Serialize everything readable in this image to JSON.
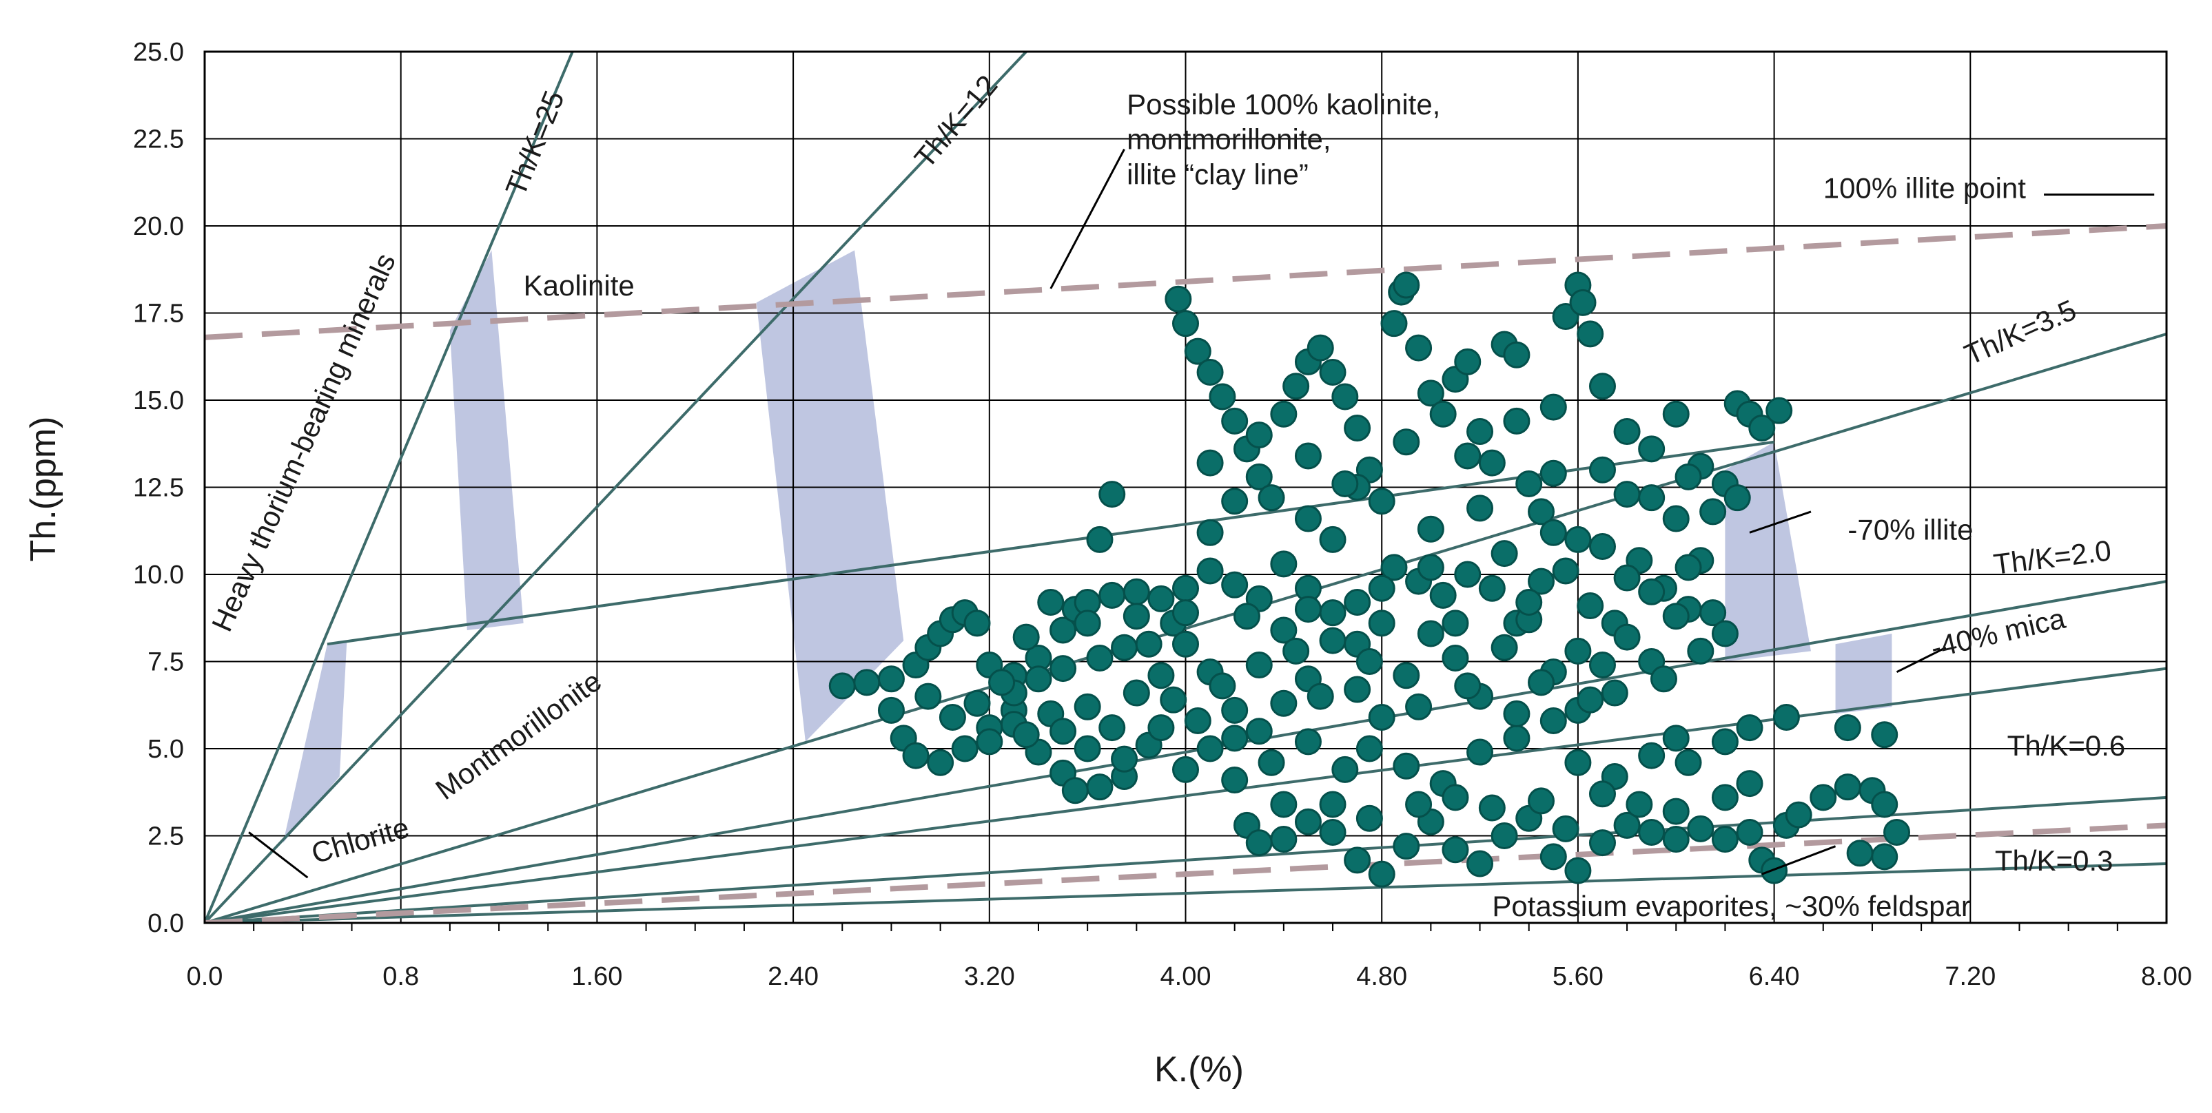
{
  "colors": {
    "points": "#0a6e68",
    "points_stroke": "#05504b",
    "ratio_lines": "#3d6b6a",
    "dashed_lines": "#b39a9e",
    "zones": "#b4bcdc",
    "grid": "#000000"
  },
  "chart_data": {
    "type": "scatter",
    "xlabel": "K.(%)",
    "ylabel": "Th.(ppm)",
    "xlim": [
      0,
      8
    ],
    "ylim": [
      0,
      25
    ],
    "grid": true,
    "x_ticks": [
      {
        "value": 0,
        "label": "0.0"
      },
      {
        "value": 0.8,
        "label": "0.8"
      },
      {
        "value": 1.6,
        "label": "1.60"
      },
      {
        "value": 2.4,
        "label": "2.40"
      },
      {
        "value": 3.2,
        "label": "3.20"
      },
      {
        "value": 4.0,
        "label": "4.00"
      },
      {
        "value": 4.8,
        "label": "4.80"
      },
      {
        "value": 5.6,
        "label": "5.60"
      },
      {
        "value": 6.4,
        "label": "6.40"
      },
      {
        "value": 7.2,
        "label": "7.20"
      },
      {
        "value": 8.0,
        "label": "8.00"
      }
    ],
    "y_ticks": [
      {
        "value": 0,
        "label": "0.0"
      },
      {
        "value": 2.5,
        "label": "2.5"
      },
      {
        "value": 5,
        "label": "5.0"
      },
      {
        "value": 7.5,
        "label": "7.5"
      },
      {
        "value": 10,
        "label": "10.0"
      },
      {
        "value": 12.5,
        "label": "12.5"
      },
      {
        "value": 15,
        "label": "15.0"
      },
      {
        "value": 17.5,
        "label": "17.5"
      },
      {
        "value": 20,
        "label": "20.0"
      },
      {
        "value": 22.5,
        "label": "22.5"
      },
      {
        "value": 25,
        "label": "25.0"
      }
    ],
    "ratio_lines": [
      {
        "label": "Th/K=25",
        "points": [
          [
            0,
            0
          ],
          [
            1.5,
            25
          ]
        ]
      },
      {
        "label": "Th/K=12",
        "points": [
          [
            0,
            0
          ],
          [
            3.35,
            25
          ]
        ]
      },
      {
        "label": "Th/K=3.5",
        "points": [
          [
            0,
            0
          ],
          [
            8,
            16.9
          ]
        ]
      },
      {
        "label": "Th/K=2.0",
        "points": [
          [
            0,
            0
          ],
          [
            8,
            9.8
          ]
        ]
      },
      {
        "label": "Th/K=0.6",
        "points": [
          [
            0,
            0
          ],
          [
            8,
            7.3
          ]
        ]
      },
      {
        "label": "",
        "points": [
          [
            0,
            0
          ],
          [
            8,
            3.6
          ]
        ]
      },
      {
        "label": "Th/K=0.3",
        "points": [
          [
            0,
            0
          ],
          [
            8,
            1.7
          ]
        ]
      },
      {
        "label": "",
        "points": [
          [
            0.5,
            8.0
          ],
          [
            6.4,
            13.8
          ]
        ]
      }
    ],
    "dashed_lines": [
      {
        "label": "Possible 100% kaolinite, montmorillonite, illite “clay line”",
        "points": [
          [
            0,
            16.8
          ],
          [
            8,
            20.0
          ]
        ]
      },
      {
        "label": "Potassium evaporites, ~30% feldspar",
        "points": [
          [
            0,
            0
          ],
          [
            8,
            2.8
          ]
        ]
      }
    ],
    "zones": [
      {
        "label": "Chlorite",
        "polygon": [
          [
            0.32,
            2.3
          ],
          [
            0.5,
            8.0
          ],
          [
            0.58,
            8.1
          ],
          [
            0.55,
            4.2
          ]
        ]
      },
      {
        "label": "Kaolinite",
        "polygon": [
          [
            1.0,
            17.0
          ],
          [
            1.17,
            19.3
          ],
          [
            1.3,
            8.6
          ],
          [
            1.07,
            8.4
          ]
        ]
      },
      {
        "label": "Montmorillonite",
        "polygon": [
          [
            2.25,
            17.8
          ],
          [
            2.65,
            19.3
          ],
          [
            2.85,
            8.1
          ],
          [
            2.45,
            5.2
          ]
        ]
      },
      {
        "label": "-70% illite",
        "polygon": [
          [
            6.2,
            13.0
          ],
          [
            6.4,
            13.8
          ],
          [
            6.55,
            7.8
          ],
          [
            6.2,
            7.5
          ]
        ]
      },
      {
        "label": "-40% mica",
        "polygon": [
          [
            6.65,
            6.0
          ],
          [
            6.65,
            8.0
          ],
          [
            6.88,
            8.3
          ],
          [
            6.88,
            6.2
          ]
        ]
      }
    ],
    "annotations": [
      {
        "text": "Th/K=25",
        "x": 1.3,
        "y": 20.8,
        "rotate": -68
      },
      {
        "text": "Th/K=12",
        "x": 2.95,
        "y": 21.6,
        "rotate": -50
      },
      {
        "text": "Possible 100% kaolinite,",
        "x": 3.76,
        "y": 23.2,
        "rotate": 0
      },
      {
        "text": "montmorillonite,",
        "x": 3.76,
        "y": 22.2,
        "rotate": 0
      },
      {
        "text": "illite “clay line”",
        "x": 3.76,
        "y": 21.2,
        "rotate": 0
      },
      {
        "text": "100% illite point",
        "x": 6.6,
        "y": 20.8,
        "rotate": 0
      },
      {
        "text": "Kaolinite",
        "x": 1.3,
        "y": 18.0,
        "rotate": 0
      },
      {
        "text": "Heavy thorium-bearing minerals",
        "x": 0.1,
        "y": 8.3,
        "rotate": -66
      },
      {
        "text": "Montmorillonite",
        "x": 0.98,
        "y": 3.5,
        "rotate": -36
      },
      {
        "text": "Chlorite",
        "x": 0.45,
        "y": 1.7,
        "rotate": -16
      },
      {
        "text": "Th/K=3.5",
        "x": 7.2,
        "y": 16.0,
        "rotate": -24
      },
      {
        "text": "-70% illite",
        "x": 6.7,
        "y": 11.0,
        "rotate": 0
      },
      {
        "text": "Th/K=2.0",
        "x": 7.3,
        "y": 10.0,
        "rotate": -7
      },
      {
        "text": "-40% mica",
        "x": 7.05,
        "y": 7.6,
        "rotate": -13
      },
      {
        "text": "Th/K=0.6",
        "x": 7.35,
        "y": 4.8,
        "rotate": 0
      },
      {
        "text": "Th/K=0.3",
        "x": 7.3,
        "y": 1.5,
        "rotate": 0
      },
      {
        "text": "Potassium evaporites, ~30% feldspar",
        "x": 5.25,
        "y": 0.2,
        "rotate": 0
      }
    ],
    "pointer_lines": [
      {
        "from": [
          3.45,
          18.2
        ],
        "to": [
          3.75,
          22.2
        ]
      },
      {
        "from": [
          7.5,
          20.9
        ],
        "to": [
          7.95,
          20.9
        ]
      },
      {
        "from": [
          6.3,
          11.2
        ],
        "to": [
          6.55,
          11.8
        ]
      },
      {
        "from": [
          6.9,
          7.2
        ],
        "to": [
          7.1,
          7.9
        ]
      },
      {
        "from": [
          0.18,
          2.6
        ],
        "to": [
          0.42,
          1.3
        ]
      },
      {
        "from": [
          6.35,
          1.4
        ],
        "to": [
          6.65,
          2.2
        ]
      }
    ],
    "points": [
      [
        2.6,
        6.8
      ],
      [
        2.7,
        6.9
      ],
      [
        2.8,
        7.0
      ],
      [
        2.9,
        7.4
      ],
      [
        2.95,
        7.9
      ],
      [
        3.0,
        8.3
      ],
      [
        3.05,
        8.7
      ],
      [
        3.1,
        8.9
      ],
      [
        3.15,
        8.6
      ],
      [
        3.2,
        7.4
      ],
      [
        3.3,
        7.1
      ],
      [
        3.4,
        7.6
      ],
      [
        3.5,
        8.4
      ],
      [
        3.55,
        9.0
      ],
      [
        3.6,
        9.2
      ],
      [
        3.7,
        9.4
      ],
      [
        3.8,
        9.5
      ],
      [
        3.9,
        9.3
      ],
      [
        3.95,
        8.6
      ],
      [
        4.0,
        9.6
      ],
      [
        4.1,
        10.1
      ],
      [
        4.2,
        9.7
      ],
      [
        4.3,
        9.3
      ],
      [
        4.4,
        10.3
      ],
      [
        4.5,
        9.6
      ],
      [
        4.6,
        8.9
      ],
      [
        4.7,
        9.2
      ],
      [
        4.8,
        8.6
      ],
      [
        4.85,
        10.2
      ],
      [
        4.95,
        9.8
      ],
      [
        5.05,
        9.4
      ],
      [
        5.15,
        10.0
      ],
      [
        5.25,
        9.6
      ],
      [
        5.35,
        8.6
      ],
      [
        5.45,
        9.8
      ],
      [
        5.55,
        10.1
      ],
      [
        5.65,
        9.1
      ],
      [
        5.75,
        8.6
      ],
      [
        5.85,
        10.4
      ],
      [
        5.95,
        9.6
      ],
      [
        6.05,
        9.0
      ],
      [
        6.15,
        8.9
      ],
      [
        2.8,
        6.1
      ],
      [
        2.85,
        5.3
      ],
      [
        2.9,
        4.8
      ],
      [
        3.0,
        4.6
      ],
      [
        3.1,
        5.0
      ],
      [
        3.2,
        5.6
      ],
      [
        3.3,
        6.1
      ],
      [
        3.4,
        4.9
      ],
      [
        3.5,
        4.3
      ],
      [
        3.55,
        3.8
      ],
      [
        3.65,
        3.9
      ],
      [
        3.75,
        4.2
      ],
      [
        3.85,
        5.1
      ],
      [
        3.95,
        6.4
      ],
      [
        4.0,
        4.4
      ],
      [
        4.1,
        5.0
      ],
      [
        4.2,
        4.1
      ],
      [
        4.25,
        2.8
      ],
      [
        4.3,
        2.3
      ],
      [
        4.4,
        2.4
      ],
      [
        4.5,
        2.9
      ],
      [
        4.6,
        3.4
      ],
      [
        4.7,
        1.8
      ],
      [
        4.8,
        1.4
      ],
      [
        4.9,
        2.2
      ],
      [
        5.0,
        2.9
      ],
      [
        5.1,
        2.1
      ],
      [
        5.2,
        1.7
      ],
      [
        5.3,
        2.5
      ],
      [
        5.4,
        3.0
      ],
      [
        5.5,
        1.9
      ],
      [
        5.6,
        1.5
      ],
      [
        5.7,
        2.3
      ],
      [
        5.8,
        2.8
      ],
      [
        5.9,
        2.6
      ],
      [
        6.0,
        3.2
      ],
      [
        6.1,
        2.7
      ],
      [
        6.2,
        2.4
      ],
      [
        6.3,
        2.6
      ],
      [
        6.35,
        1.8
      ],
      [
        6.4,
        1.5
      ],
      [
        6.45,
        2.8
      ],
      [
        6.5,
        3.1
      ],
      [
        6.6,
        3.6
      ],
      [
        6.7,
        3.9
      ],
      [
        6.8,
        3.8
      ],
      [
        6.85,
        3.4
      ],
      [
        6.9,
        2.6
      ],
      [
        6.85,
        1.9
      ],
      [
        6.75,
        2.0
      ],
      [
        5.6,
        4.6
      ],
      [
        5.75,
        4.2
      ],
      [
        5.9,
        4.8
      ],
      [
        6.05,
        4.6
      ],
      [
        6.2,
        5.2
      ],
      [
        6.3,
        5.6
      ],
      [
        6.45,
        5.9
      ],
      [
        6.7,
        5.6
      ],
      [
        6.85,
        5.4
      ],
      [
        6.0,
        5.3
      ],
      [
        3.97,
        17.9
      ],
      [
        4.0,
        17.2
      ],
      [
        4.05,
        16.4
      ],
      [
        4.1,
        15.8
      ],
      [
        4.15,
        15.1
      ],
      [
        4.2,
        14.4
      ],
      [
        4.25,
        13.6
      ],
      [
        4.3,
        12.8
      ],
      [
        4.35,
        12.2
      ],
      [
        4.4,
        14.6
      ],
      [
        4.45,
        15.4
      ],
      [
        4.5,
        16.1
      ],
      [
        4.55,
        16.5
      ],
      [
        4.6,
        15.8
      ],
      [
        4.65,
        15.1
      ],
      [
        4.7,
        14.2
      ],
      [
        4.75,
        13.0
      ],
      [
        4.8,
        12.1
      ],
      [
        4.85,
        17.2
      ],
      [
        4.88,
        18.1
      ],
      [
        4.9,
        18.3
      ],
      [
        4.95,
        16.5
      ],
      [
        5.0,
        15.2
      ],
      [
        5.05,
        14.6
      ],
      [
        5.1,
        15.6
      ],
      [
        5.15,
        16.1
      ],
      [
        5.2,
        14.1
      ],
      [
        5.25,
        13.2
      ],
      [
        5.3,
        16.6
      ],
      [
        5.35,
        16.3
      ],
      [
        5.4,
        12.6
      ],
      [
        5.45,
        11.8
      ],
      [
        5.5,
        12.9
      ],
      [
        5.55,
        17.4
      ],
      [
        5.6,
        18.3
      ],
      [
        5.62,
        17.8
      ],
      [
        5.65,
        16.9
      ],
      [
        5.7,
        15.4
      ],
      [
        5.8,
        14.1
      ],
      [
        5.9,
        13.6
      ],
      [
        6.0,
        14.6
      ],
      [
        6.1,
        13.1
      ],
      [
        6.2,
        12.6
      ],
      [
        6.25,
        14.9
      ],
      [
        6.3,
        14.6
      ],
      [
        6.35,
        14.2
      ],
      [
        6.42,
        14.7
      ],
      [
        3.7,
        12.3
      ],
      [
        3.65,
        11.0
      ],
      [
        4.1,
        11.2
      ],
      [
        4.2,
        12.1
      ],
      [
        4.5,
        11.6
      ],
      [
        4.6,
        11.0
      ],
      [
        4.7,
        12.5
      ],
      [
        5.0,
        11.3
      ],
      [
        5.2,
        11.9
      ],
      [
        5.6,
        11.0
      ],
      [
        5.8,
        12.3
      ],
      [
        6.0,
        11.6
      ],
      [
        6.1,
        10.4
      ],
      [
        5.9,
        9.5
      ],
      [
        6.05,
        10.2
      ],
      [
        3.3,
        6.6
      ],
      [
        3.4,
        7.0
      ],
      [
        3.5,
        7.3
      ],
      [
        3.6,
        6.2
      ],
      [
        3.7,
        5.6
      ],
      [
        3.8,
        6.6
      ],
      [
        3.9,
        7.1
      ],
      [
        4.0,
        8.0
      ],
      [
        4.1,
        7.2
      ],
      [
        4.2,
        6.1
      ],
      [
        4.3,
        5.5
      ],
      [
        4.4,
        6.3
      ],
      [
        4.5,
        7.0
      ],
      [
        4.6,
        8.1
      ],
      [
        4.7,
        6.7
      ],
      [
        4.8,
        5.9
      ],
      [
        4.9,
        7.1
      ],
      [
        5.0,
        8.3
      ],
      [
        5.1,
        7.6
      ],
      [
        5.2,
        6.5
      ],
      [
        5.3,
        7.9
      ],
      [
        5.4,
        8.7
      ],
      [
        5.5,
        7.2
      ],
      [
        5.6,
        6.1
      ],
      [
        5.7,
        7.4
      ],
      [
        5.8,
        8.2
      ],
      [
        5.9,
        7.5
      ],
      [
        6.0,
        8.8
      ],
      [
        3.2,
        5.2
      ],
      [
        3.3,
        5.7
      ],
      [
        3.45,
        6.0
      ],
      [
        3.6,
        5.0
      ],
      [
        3.75,
        4.7
      ],
      [
        3.9,
        5.6
      ],
      [
        4.05,
        5.8
      ],
      [
        4.2,
        5.3
      ],
      [
        4.35,
        4.6
      ],
      [
        4.5,
        5.2
      ],
      [
        4.65,
        4.4
      ],
      [
        4.75,
        5.0
      ],
      [
        4.9,
        4.5
      ],
      [
        5.05,
        4.0
      ],
      [
        5.2,
        4.9
      ],
      [
        5.35,
        5.3
      ],
      [
        5.5,
        5.8
      ],
      [
        5.65,
        6.4
      ],
      [
        4.4,
        3.4
      ],
      [
        4.6,
        2.6
      ],
      [
        4.75,
        3.0
      ],
      [
        4.95,
        3.4
      ],
      [
        5.1,
        3.6
      ],
      [
        5.25,
        3.3
      ],
      [
        5.45,
        3.5
      ],
      [
        5.55,
        2.7
      ],
      [
        5.7,
        3.7
      ],
      [
        5.85,
        3.4
      ],
      [
        6.0,
        2.4
      ],
      [
        6.2,
        3.6
      ],
      [
        6.3,
        4.0
      ],
      [
        4.5,
        9.0
      ],
      [
        4.8,
        9.6
      ],
      [
        5.0,
        10.2
      ],
      [
        5.3,
        10.6
      ],
      [
        5.5,
        11.2
      ],
      [
        5.7,
        10.8
      ],
      [
        4.25,
        8.8
      ],
      [
        4.4,
        8.4
      ],
      [
        4.7,
        8.0
      ],
      [
        5.1,
        8.6
      ],
      [
        5.4,
        9.2
      ],
      [
        5.8,
        9.9
      ],
      [
        3.6,
        8.6
      ],
      [
        3.8,
        8.8
      ],
      [
        4.0,
        8.9
      ],
      [
        3.35,
        8.2
      ],
      [
        3.45,
        9.2
      ],
      [
        2.95,
        6.5
      ],
      [
        3.05,
        5.9
      ],
      [
        3.15,
        6.3
      ],
      [
        3.25,
        6.9
      ],
      [
        3.35,
        5.4
      ],
      [
        3.5,
        5.5
      ],
      [
        3.65,
        7.6
      ],
      [
        3.75,
        7.9
      ],
      [
        3.85,
        8.0
      ],
      [
        4.15,
        6.8
      ],
      [
        4.3,
        7.4
      ],
      [
        4.45,
        7.8
      ],
      [
        4.55,
        6.5
      ],
      [
        4.75,
        7.5
      ],
      [
        4.95,
        6.2
      ],
      [
        5.15,
        6.8
      ],
      [
        5.35,
        6.0
      ],
      [
        5.45,
        6.9
      ],
      [
        5.6,
        7.8
      ],
      [
        5.75,
        6.6
      ],
      [
        5.95,
        7.0
      ],
      [
        6.1,
        7.8
      ],
      [
        6.2,
        8.3
      ],
      [
        4.1,
        13.2
      ],
      [
        4.3,
        14.0
      ],
      [
        4.5,
        13.4
      ],
      [
        4.65,
        12.6
      ],
      [
        4.9,
        13.8
      ],
      [
        5.15,
        13.4
      ],
      [
        5.35,
        14.4
      ],
      [
        5.5,
        14.8
      ],
      [
        5.7,
        13.0
      ],
      [
        5.9,
        12.2
      ],
      [
        6.05,
        12.8
      ],
      [
        6.15,
        11.8
      ],
      [
        6.25,
        12.2
      ]
    ]
  }
}
